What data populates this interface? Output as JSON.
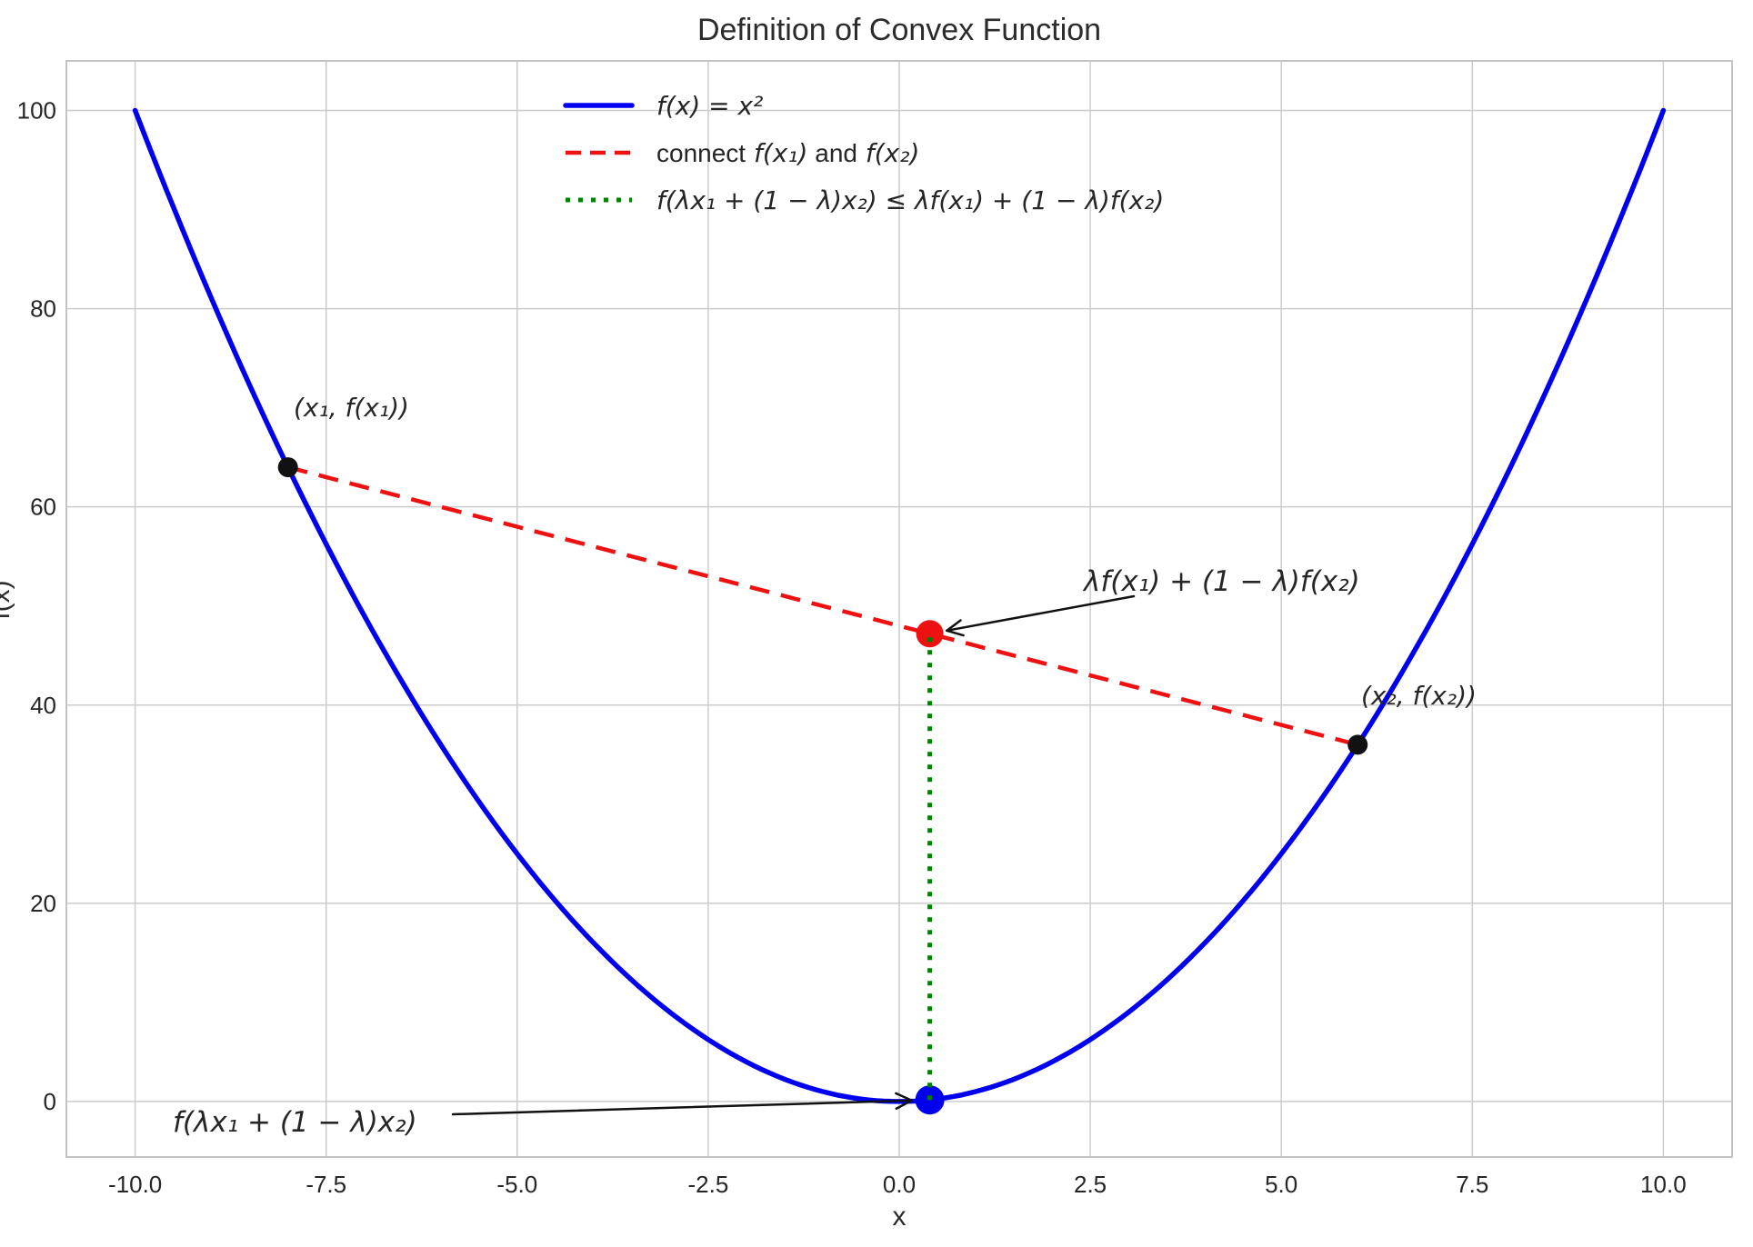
{
  "chart_data": {
    "type": "line",
    "title": "Definition of Convex Function",
    "xlabel": "x",
    "ylabel": "f(x)",
    "xlim": [
      -10.9,
      10.9
    ],
    "ylim": [
      -5.6,
      105.0
    ],
    "grid": true,
    "legend_position": "upper center",
    "xticks": {
      "values": [
        -10,
        -7.5,
        -5,
        -2.5,
        0,
        2.5,
        5,
        7.5,
        10
      ],
      "labels": [
        "-10.0",
        "-7.5",
        "-5.0",
        "-2.5",
        "0.0",
        "2.5",
        "5.0",
        "7.5",
        "10.0"
      ]
    },
    "yticks": {
      "values": [
        0,
        20,
        40,
        60,
        80,
        100
      ],
      "labels": [
        "0",
        "20",
        "40",
        "60",
        "80",
        "100"
      ]
    },
    "legend": [
      {
        "label": "f(x) = x²",
        "color": "#0000ee",
        "style": "solid"
      },
      {
        "label": "connect f(x₁) and f(x₂)",
        "color": "#ee1111",
        "style": "dashed"
      },
      {
        "label": "f(λx₁ + (1 − λ)x₂) ≤ λf(x₁) + (1 − λ)f(x₂)",
        "color": "#008000",
        "style": "dotted"
      }
    ],
    "curve": {
      "expression": "f(x) = x²",
      "x_range": [
        -10,
        10
      ],
      "color": "#0000ee",
      "linewidth": 5.5
    },
    "chord": {
      "from": [
        -8,
        64
      ],
      "to": [
        6,
        36
      ],
      "color": "#ee1111",
      "style": "dashed",
      "linewidth": 4.5
    },
    "vertical_segment": {
      "from": [
        0.4,
        0.16
      ],
      "to": [
        0.4,
        47.2
      ],
      "color": "#008000",
      "style": "dotted",
      "linewidth": 5
    },
    "points": [
      {
        "name": "x1",
        "x": -8,
        "y": 64,
        "color": "#111111",
        "radius": 11
      },
      {
        "name": "x2",
        "x": 6,
        "y": 36,
        "color": "#111111",
        "radius": 11
      },
      {
        "name": "chord-combination",
        "x": 0.4,
        "y": 47.2,
        "color": "#ee1111",
        "radius": 15
      },
      {
        "name": "function-value",
        "x": 0.4,
        "y": 0.16,
        "color": "#0000ee",
        "radius": 16
      }
    ],
    "annotations": [
      {
        "text": "(x₁, f(x₁))",
        "color": "#1a1a1a",
        "arrow": false
      },
      {
        "text": "(x₂, f(x₂))",
        "color": "#1a1a1a",
        "arrow": false
      },
      {
        "text": "λf(x₁) + (1 − λ)f(x₂)",
        "color": "#ee1111",
        "arrow": true
      },
      {
        "text": "f(λx₁ + (1 − λ)x₂)",
        "color": "#0000ee",
        "arrow": true
      }
    ]
  }
}
